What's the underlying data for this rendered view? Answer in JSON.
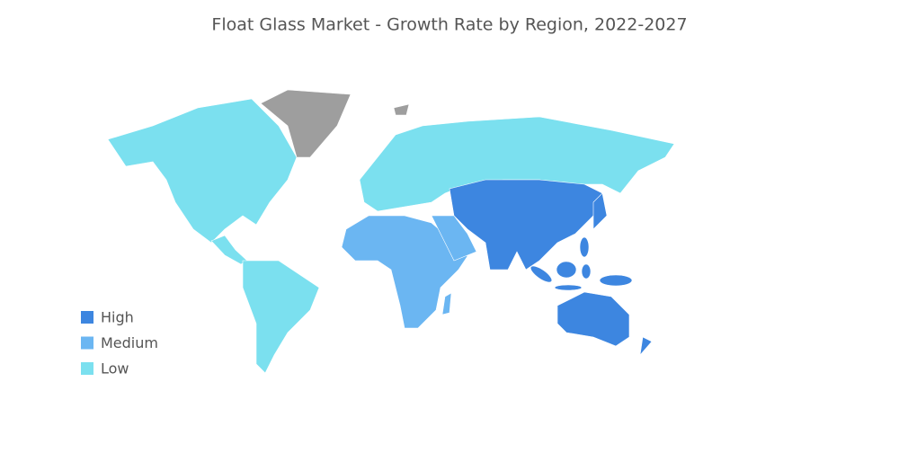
{
  "title": "Float Glass Market - Growth Rate by Region, 2022-2027",
  "legend": [
    {
      "label": "High",
      "color": "#3d86e0"
    },
    {
      "label": "Medium",
      "color": "#6bb6f2"
    },
    {
      "label": "Low",
      "color": "#7be0ef"
    }
  ]
}
